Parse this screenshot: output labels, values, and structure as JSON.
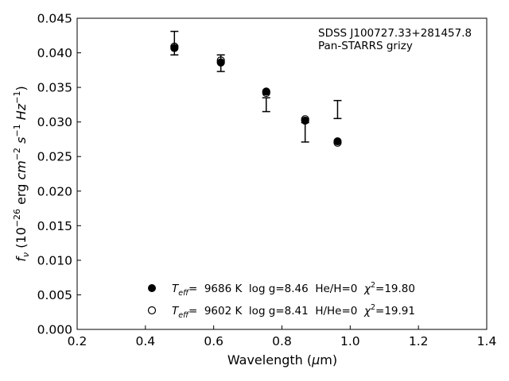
{
  "chart_data": {
    "type": "scatter",
    "xlabel": "Wavelength (μm)",
    "ylabel": "fν (10⁻²⁶ erg cm⁻² s⁻¹ Hz⁻¹)",
    "xlim": [
      0.2,
      1.4
    ],
    "ylim": [
      0.0,
      0.045
    ],
    "xticks": [
      "0.2",
      "0.4",
      "0.6",
      "0.8",
      "1.0",
      "1.2",
      "1.4"
    ],
    "yticks": [
      "0.000",
      "0.005",
      "0.010",
      "0.015",
      "0.020",
      "0.025",
      "0.030",
      "0.035",
      "0.040",
      "0.045"
    ],
    "annotation": [
      "SDSS J100727.33+281457.8",
      "Pan-STARRS grizy"
    ],
    "observed": {
      "x": [
        0.485,
        0.621,
        0.754,
        0.868,
        0.963
      ],
      "y": [
        0.0414,
        0.0385,
        0.0325,
        0.0285,
        0.0318
      ],
      "err": [
        0.0017,
        0.0012,
        0.001,
        0.0014,
        0.0013
      ]
    },
    "series": [
      {
        "marker": "filled-circle",
        "label": "T_eff=  9686 K  log g=8.46  He/H=0  χ²=19.80",
        "label_parts": [
          "T",
          "eff",
          "=  9686 K  log g=8.46  He/H=0  ",
          "χ",
          "2",
          "=19.80"
        ],
        "x": [
          0.485,
          0.621,
          0.754,
          0.868,
          0.963
        ],
        "y": [
          0.0407,
          0.0386,
          0.0344,
          0.0302,
          0.0272
        ]
      },
      {
        "marker": "open-circle",
        "label": "T_eff=  9602 K  log g=8.41  H/He=0  χ²=19.91",
        "label_parts": [
          "T",
          "eff",
          "=  9602 K  log g=8.41  H/He=0  ",
          "χ",
          "2",
          "=19.91"
        ],
        "x": [
          0.485,
          0.621,
          0.754,
          0.868,
          0.963
        ],
        "y": [
          0.0409,
          0.0389,
          0.0342,
          0.0304,
          0.027
        ]
      }
    ],
    "grid": false,
    "legend_position": "bottom-center"
  }
}
